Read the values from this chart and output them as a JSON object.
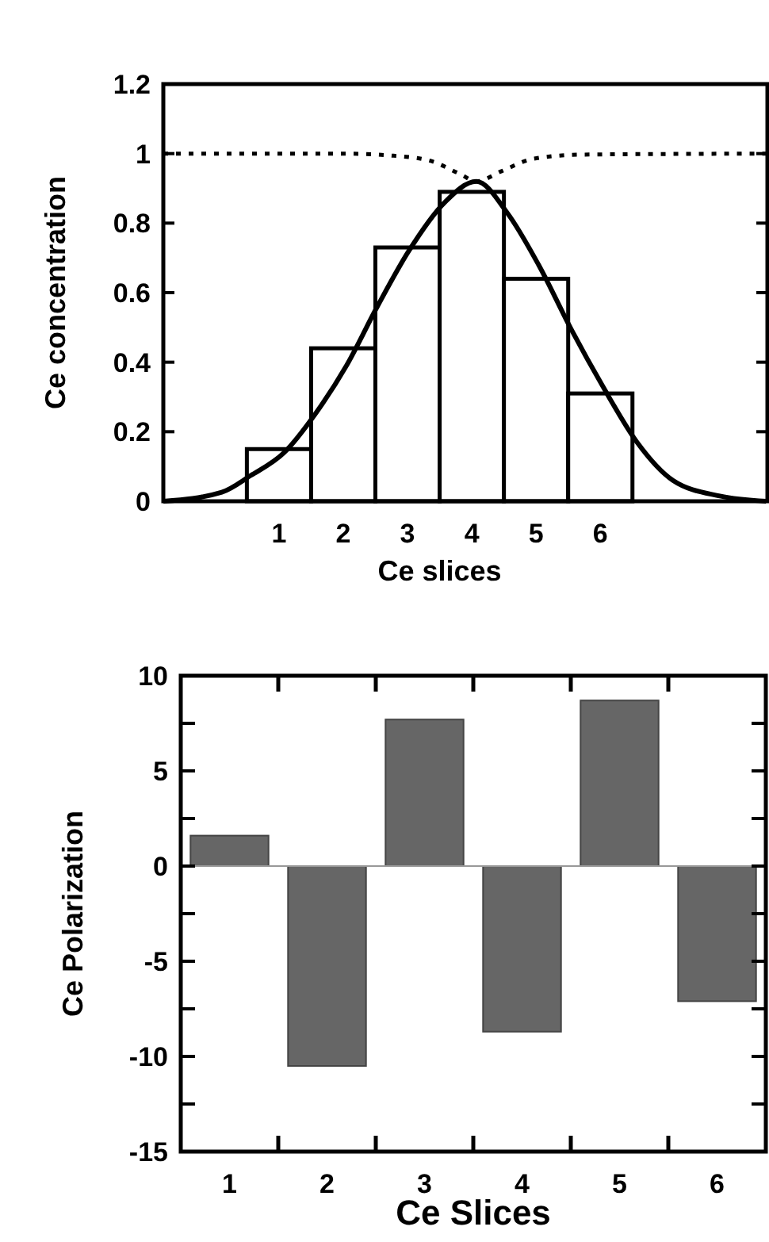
{
  "chart_data": [
    {
      "type": "histogram",
      "ylabel": "Ce  concentration",
      "xlabel": "Ce slices",
      "bins": [
        0.5,
        1.5,
        2.5,
        3.5,
        4.5,
        5.5,
        6.5
      ],
      "values": [
        0.15,
        0.44,
        0.73,
        0.89,
        0.64,
        0.31
      ],
      "color": "#ffffff",
      "xlim": [
        -0.8,
        8.6
      ],
      "xticks": [
        1,
        2,
        3,
        4,
        5,
        6
      ],
      "ylim": [
        0,
        1.2
      ],
      "yticks": [
        0,
        0.2,
        0.4,
        0.6,
        0.8,
        1,
        1.2
      ],
      "series": [
        {
          "type": "line",
          "color": "#000000",
          "line_style": "solid",
          "x": [
            -0.8,
            0.11,
            0.56,
            1.08,
            1.56,
            2.05,
            2.53,
            3.02,
            3.58,
            4.07,
            4.55,
            5.04,
            5.56,
            6.04,
            6.57,
            7.13,
            7.86,
            8.58
          ],
          "values": [
            0,
            0.026,
            0.074,
            0.14,
            0.25,
            0.39,
            0.56,
            0.72,
            0.86,
            0.92,
            0.83,
            0.68,
            0.49,
            0.33,
            0.17,
            0.06,
            0.015,
            0
          ]
        },
        {
          "type": "line",
          "color": "#000000",
          "line_style": "dotted",
          "x": [
            -0.8,
            2,
            2.7,
            3.34,
            3.83,
            4.07,
            4.47,
            4.95,
            5.7,
            8.58
          ],
          "values": [
            1,
            1,
            0.995,
            0.98,
            0.94,
            0.92,
            0.95,
            0.985,
            0.997,
            1
          ]
        }
      ]
    },
    {
      "type": "bar",
      "ylabel": "Ce Polarization",
      "xlabel": "Ce Slices",
      "categories": [
        "1",
        "2",
        "3",
        "4",
        "5",
        "6"
      ],
      "values": [
        1.6,
        -10.5,
        7.7,
        -8.7,
        8.7,
        -7.1
      ],
      "color": "#666666",
      "ylim": [
        -15,
        10
      ],
      "yticks": [
        -15,
        {
          "value": -12.5,
          "label": null
        },
        -10,
        {
          "value": -7.5,
          "label": null
        },
        -5,
        {
          "value": -2.5,
          "label": null
        },
        0,
        {
          "value": 2.5,
          "label": null
        },
        5,
        {
          "value": 7.5,
          "label": null
        },
        10
      ]
    }
  ]
}
